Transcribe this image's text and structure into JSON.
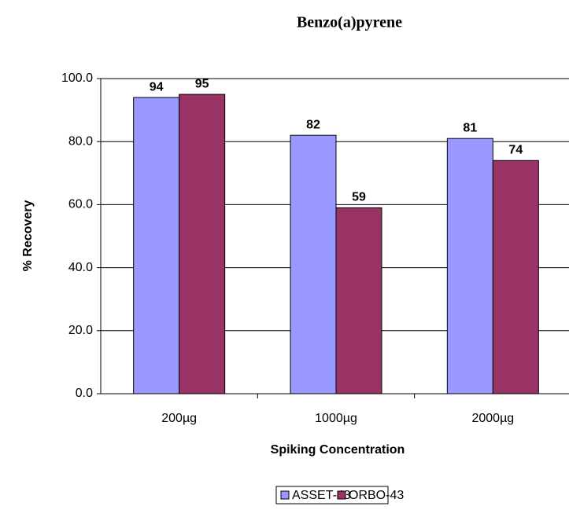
{
  "chart_data": {
    "type": "bar",
    "title": "Benzo(a)pyrene",
    "x_label": "Spiking Concentration",
    "y_label": "% Recovery",
    "categories": [
      "200µg",
      "1000µg",
      "2000µg"
    ],
    "series": [
      {
        "name": "ASSET-43",
        "color": "#9999ff",
        "values": [
          94,
          82,
          81
        ]
      },
      {
        "name": "ORBO-43",
        "color": "#993366",
        "values": [
          95,
          59,
          74
        ]
      }
    ],
    "ylim": [
      0,
      100
    ],
    "yticks": [
      {
        "value": 0,
        "label": "0.0"
      },
      {
        "value": 20,
        "label": "20.0"
      },
      {
        "value": 40,
        "label": "40.0"
      },
      {
        "value": 60,
        "label": "60.0"
      },
      {
        "value": 80,
        "label": "80.0"
      },
      {
        "value": 100,
        "label": "100.0"
      }
    ],
    "grid": true,
    "legend": "bottom"
  }
}
